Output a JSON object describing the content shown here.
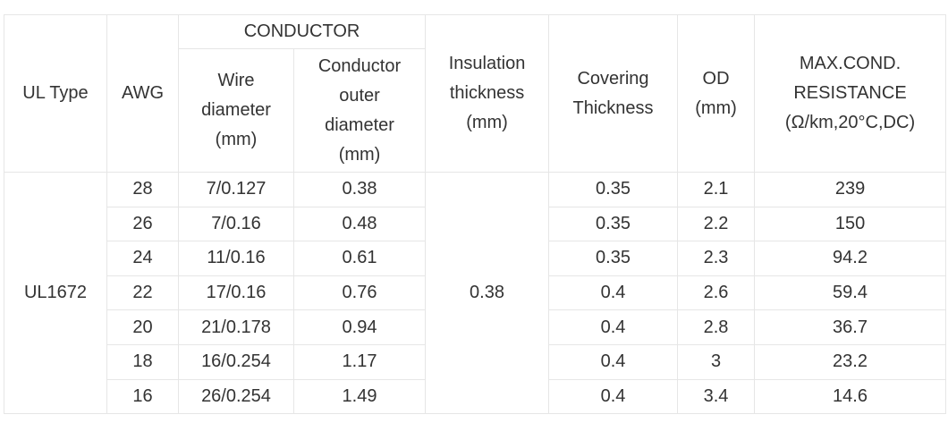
{
  "table": {
    "headers": {
      "ul_type": "UL Type",
      "awg": "AWG",
      "conductor": "CONDUCTOR",
      "wire_diameter": "Wire\ndiameter\n(mm)",
      "conductor_outer_diameter": "Conductor\nouter\ndiameter\n(mm)",
      "insulation_thickness": "Insulation\nthickness\n(mm)",
      "covering_thickness": "Covering\nThickness",
      "od": "OD\n(mm)",
      "max_cond_resistance": "MAX.COND.\nRESISTANCE\n(Ω/km,20°C,DC)"
    },
    "ul_type": "UL1672",
    "insulation_thickness": "0.38",
    "rows": [
      {
        "awg": "28",
        "wire": "7/0.127",
        "cod": "0.38",
        "covering": "0.35",
        "od": "2.1",
        "res": "239"
      },
      {
        "awg": "26",
        "wire": "7/0.16",
        "cod": "0.48",
        "covering": "0.35",
        "od": "2.2",
        "res": "150"
      },
      {
        "awg": "24",
        "wire": "11/0.16",
        "cod": "0.61",
        "covering": "0.35",
        "od": "2.3",
        "res": "94.2"
      },
      {
        "awg": "22",
        "wire": "17/0.16",
        "cod": "0.76",
        "covering": "0.4",
        "od": "2.6",
        "res": "59.4"
      },
      {
        "awg": "20",
        "wire": "21/0.178",
        "cod": "0.94",
        "covering": "0.4",
        "od": "2.8",
        "res": "36.7"
      },
      {
        "awg": "18",
        "wire": "16/0.254",
        "cod": "1.17",
        "covering": "0.4",
        "od": "3",
        "res": "23.2"
      },
      {
        "awg": "16",
        "wire": "26/0.254",
        "cod": "1.49",
        "covering": "0.4",
        "od": "3.4",
        "res": "14.6"
      }
    ]
  }
}
